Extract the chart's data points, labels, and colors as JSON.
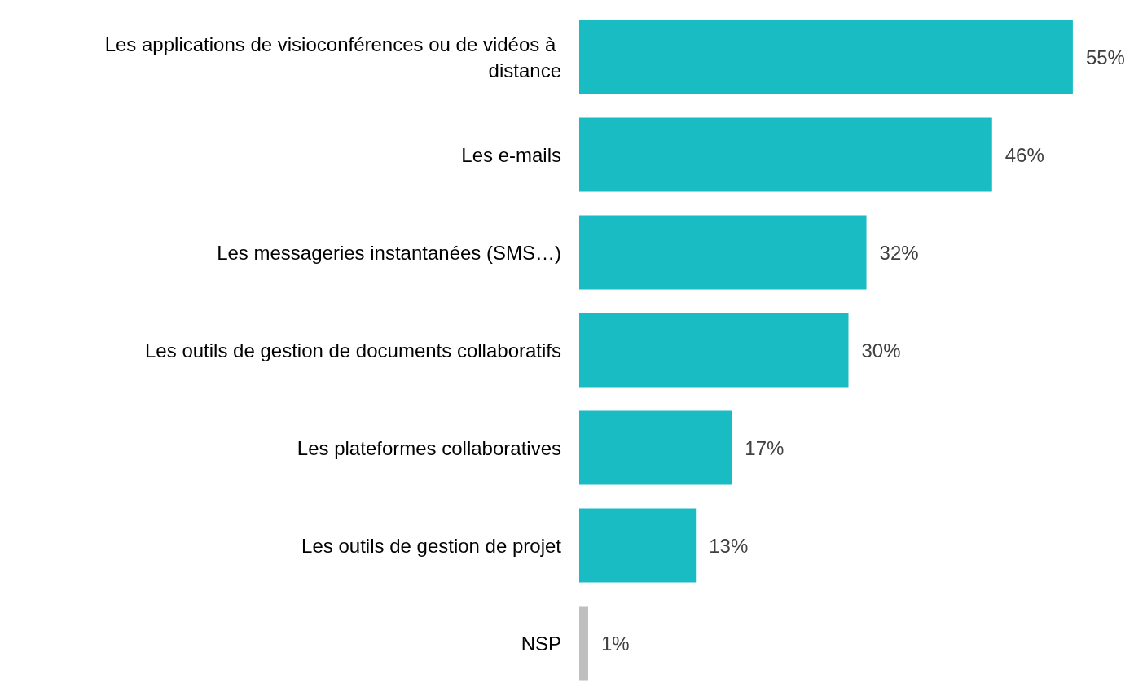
{
  "chart_data": {
    "type": "bar",
    "orientation": "horizontal",
    "categories": [
      "Les applications de visioconférences ou de vidéos à distance",
      "Les e-mails",
      "Les messageries instantanées (SMS…)",
      "Les outils de gestion de documents collaboratifs",
      "Les plateformes collaboratives",
      "Les outils de gestion de projet",
      "NSP"
    ],
    "values": [
      55,
      46,
      32,
      30,
      17,
      13,
      1
    ],
    "colors": [
      "#1abcc4",
      "#1abcc4",
      "#1abcc4",
      "#1abcc4",
      "#1abcc4",
      "#1abcc4",
      "#bfbfbf"
    ],
    "value_labels": [
      "55%",
      "46%",
      "32%",
      "30%",
      "17%",
      "13%",
      "1%"
    ]
  }
}
